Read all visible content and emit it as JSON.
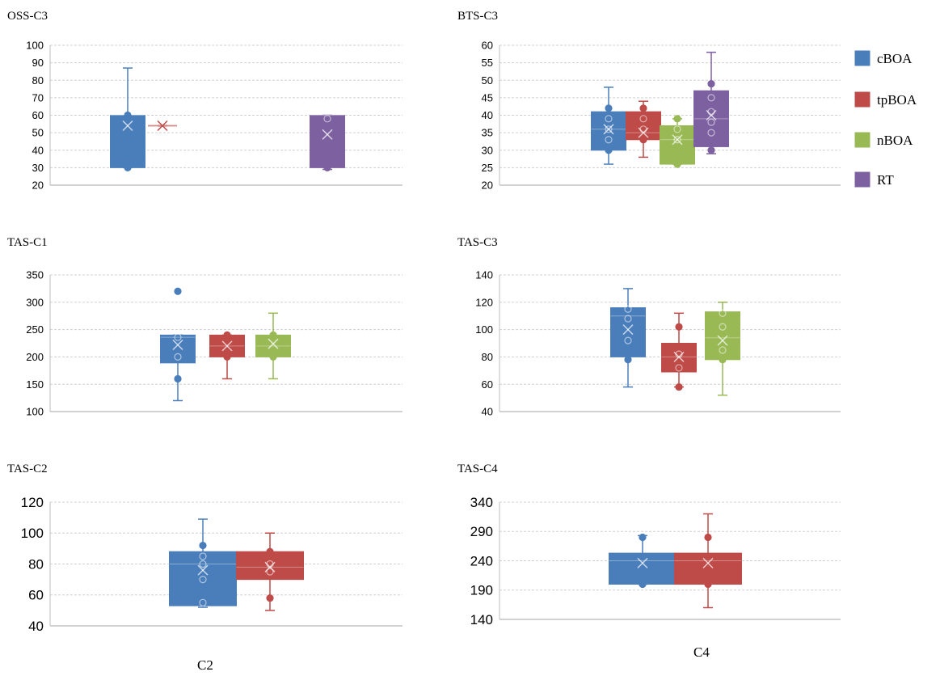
{
  "colors": {
    "cBOA": "#4a7ebb",
    "tpBOA": "#be4b48",
    "nBOA": "#98b954",
    "RT": "#7d60a0"
  },
  "legend": [
    "cBOA",
    "tpBOA",
    "nBOA",
    "RT"
  ],
  "bottom_labels": {
    "left": "C2",
    "right": "C4"
  },
  "chart_data": [
    {
      "type": "box",
      "title": "OSS-C3",
      "ylim": [
        20,
        100
      ],
      "yticks": [
        20,
        30,
        40,
        50,
        60,
        70,
        80,
        90,
        100
      ],
      "grid": true,
      "series": [
        {
          "name": "cBOA",
          "min": 30,
          "q1": 30,
          "median": 60,
          "q3": 60,
          "max": 87,
          "mean": 54,
          "points": [
            30,
            60
          ]
        },
        {
          "name": "tpBOA",
          "min": 54,
          "q1": 54,
          "median": 54,
          "q3": 54,
          "max": 54,
          "mean": 54,
          "points": []
        },
        {
          "name": "RT",
          "min": 29,
          "q1": 30,
          "median": 60,
          "q3": 60,
          "max": 60,
          "mean": 49,
          "points": [
            30,
            58
          ]
        }
      ]
    },
    {
      "type": "box",
      "title": "BTS-C3",
      "ylim": [
        20,
        60
      ],
      "yticks": [
        20,
        25,
        30,
        35,
        40,
        45,
        50,
        55,
        60
      ],
      "grid": true,
      "series": [
        {
          "name": "cBOA",
          "min": 26,
          "q1": 30,
          "median": 36,
          "q3": 41,
          "max": 48,
          "mean": 36,
          "points": [
            30,
            33,
            36,
            39,
            42
          ]
        },
        {
          "name": "tpBOA",
          "min": 28,
          "q1": 33,
          "median": 35,
          "q3": 41,
          "max": 44,
          "mean": 35,
          "points": [
            33,
            36,
            39,
            42
          ]
        },
        {
          "name": "nBOA",
          "min": 26,
          "q1": 26,
          "median": 33,
          "q3": 37,
          "max": 39,
          "mean": 33,
          "points": [
            26,
            33,
            36,
            39
          ]
        },
        {
          "name": "RT",
          "min": 29,
          "q1": 31,
          "median": 39,
          "q3": 47,
          "max": 58,
          "mean": 40,
          "points": [
            30,
            35,
            38,
            41,
            45,
            49
          ]
        }
      ]
    },
    {
      "type": "box",
      "title": "TAS-C1",
      "ylim": [
        100,
        350
      ],
      "yticks": [
        100,
        150,
        200,
        250,
        300,
        350
      ],
      "grid": true,
      "series": [
        {
          "name": "cBOA",
          "min": 120,
          "q1": 189,
          "median": 236,
          "q3": 240,
          "max": 240,
          "mean": 222,
          "points": [
            160,
            200,
            236,
            320
          ]
        },
        {
          "name": "tpBOA",
          "min": 160,
          "q1": 200,
          "median": 220,
          "q3": 240,
          "max": 240,
          "mean": 220,
          "points": [
            200,
            240
          ]
        },
        {
          "name": "nBOA",
          "min": 160,
          "q1": 200,
          "median": 220,
          "q3": 240,
          "max": 280,
          "mean": 224,
          "points": [
            200,
            240
          ]
        }
      ]
    },
    {
      "type": "box",
      "title": "TAS-C3",
      "ylim": [
        40,
        140
      ],
      "yticks": [
        40,
        60,
        80,
        100,
        120,
        140
      ],
      "grid": true,
      "series": [
        {
          "name": "cBOA",
          "min": 58,
          "q1": 80,
          "median": 110,
          "q3": 116,
          "max": 130,
          "mean": 100,
          "points": [
            78,
            92,
            108,
            115
          ]
        },
        {
          "name": "tpBOA",
          "min": 58,
          "q1": 69,
          "median": 80,
          "q3": 90,
          "max": 112,
          "mean": 80,
          "points": [
            58,
            72,
            82,
            102
          ]
        },
        {
          "name": "nBOA",
          "min": 52,
          "q1": 78,
          "median": 94,
          "q3": 113,
          "max": 120,
          "mean": 92,
          "points": [
            78,
            85,
            102,
            112
          ]
        }
      ]
    },
    {
      "type": "box",
      "title": "TAS-C2",
      "ylim": [
        40,
        120
      ],
      "yticks": [
        40,
        60,
        80,
        100,
        120
      ],
      "grid": true,
      "series": [
        {
          "name": "cBOA",
          "min": 52,
          "q1": 53,
          "median": 80,
          "q3": 88,
          "max": 109,
          "mean": 76,
          "points": [
            55,
            70,
            80,
            85,
            92
          ]
        },
        {
          "name": "tpBOA",
          "min": 50,
          "q1": 70,
          "median": 78,
          "q3": 88,
          "max": 100,
          "mean": 78,
          "points": [
            58,
            75,
            80,
            88
          ]
        }
      ]
    },
    {
      "type": "box",
      "title": "TAS-C4",
      "ylim": [
        140,
        340
      ],
      "yticks": [
        140,
        190,
        240,
        290,
        340
      ],
      "grid": true,
      "series": [
        {
          "name": "cBOA",
          "min": 200,
          "q1": 200,
          "median": 240,
          "q3": 253,
          "max": 283,
          "mean": 236,
          "points": [
            200,
            280
          ]
        },
        {
          "name": "tpBOA",
          "min": 160,
          "q1": 200,
          "median": 240,
          "q3": 253,
          "max": 320,
          "mean": 236,
          "points": [
            200,
            280
          ]
        }
      ]
    }
  ]
}
